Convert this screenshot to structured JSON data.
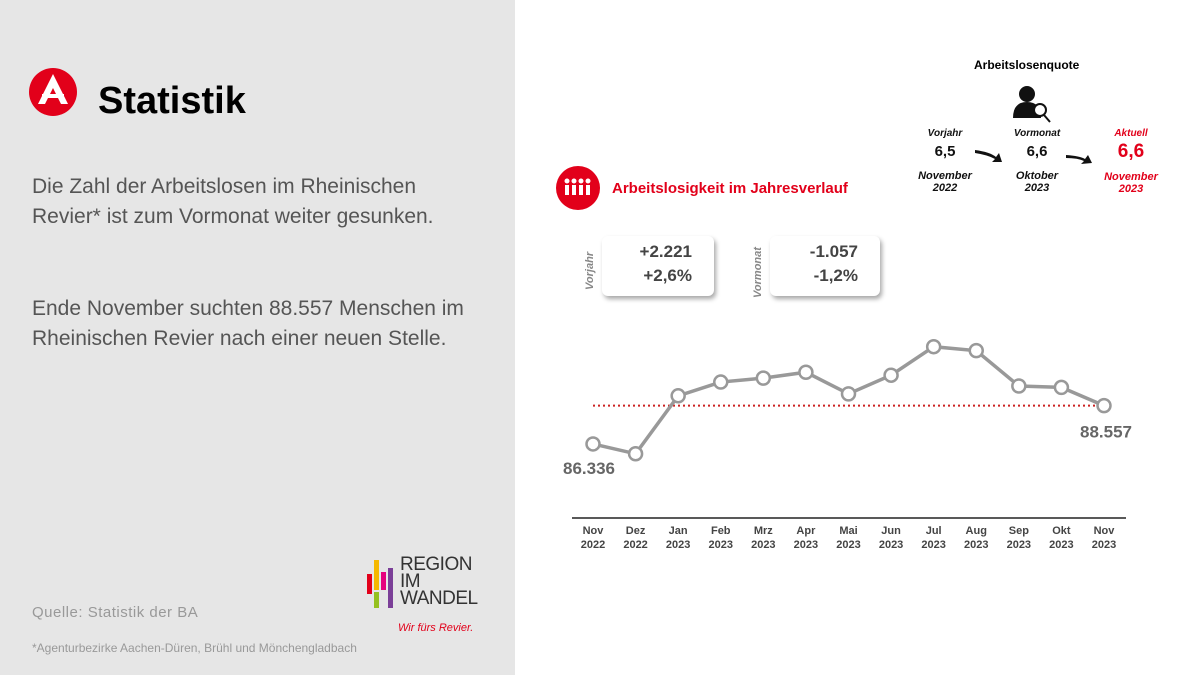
{
  "header": {
    "title": "Statistik"
  },
  "paragraphs": [
    "Die Zahl der Arbeitslosen im Rheinischen Revier* ist zum Vormonat weiter gesunken.",
    "Ende November suchten 88.557 Menschen im Rheinischen Revier nach einer neuen Stelle."
  ],
  "source": "Quelle: Statistik der BA",
  "footnote": "*Agenturbezirke Aachen-Düren, Brühl und Mönchengladbach",
  "logo": {
    "lines": [
      "REGION",
      "IM",
      "WANDEL"
    ],
    "slogan": "Wir fürs Revier."
  },
  "quote": {
    "title": "Arbeitslosenquote",
    "icon_label": "JOB",
    "columns": [
      {
        "label": "Vorjahr",
        "value": "6,5",
        "period": "November 2022"
      },
      {
        "label": "Vormonat",
        "value": "6,6",
        "period": "Oktober 2023"
      },
      {
        "label": "Aktuell",
        "value": "6,6",
        "period": "November 2023"
      }
    ]
  },
  "changes": [
    {
      "label": "Vorjahr",
      "abs": "+2.221",
      "pct": "+2,6%"
    },
    {
      "label": "Vormonat",
      "abs": "-1.057",
      "pct": "-1,2%"
    }
  ],
  "chart_data": {
    "type": "line",
    "title": "Arbeitslosigkeit im Jahresverlauf",
    "categories": [
      "Nov 2022",
      "Dez 2022",
      "Jan 2023",
      "Feb 2023",
      "Mrz 2023",
      "Apr 2023",
      "Mai 2023",
      "Jun 2023",
      "Jul 2023",
      "Aug 2023",
      "Sep 2023",
      "Okt 2023",
      "Nov 2023"
    ],
    "series": [
      {
        "name": "Arbeitslose",
        "color": "#999999",
        "values": [
          86336,
          85767,
          89127,
          89924,
          90152,
          90493,
          89240,
          90322,
          91974,
          91746,
          89696,
          89614,
          88557
        ],
        "value_labels": [
          "86.336",
          null,
          null,
          null,
          null,
          null,
          null,
          null,
          null,
          null,
          null,
          null,
          "88.557"
        ]
      }
    ],
    "reference_line": {
      "value": 88557,
      "color": "#cc2222"
    },
    "ylim": [
      85000,
      93000
    ]
  }
}
